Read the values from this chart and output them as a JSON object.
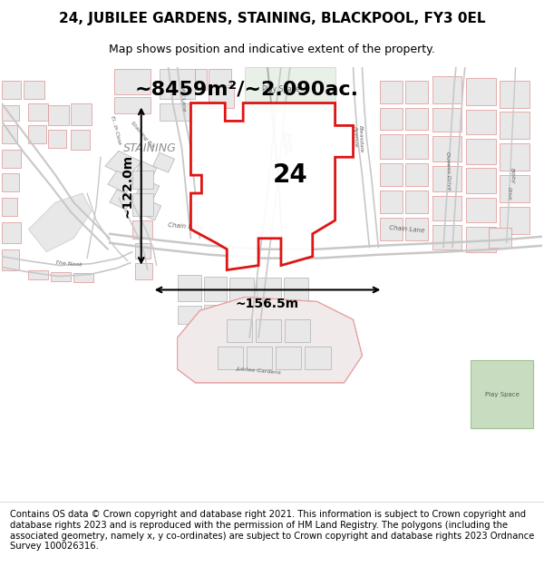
{
  "title": "24, JUBILEE GARDENS, STAINING, BLACKPOOL, FY3 0EL",
  "subtitle": "Map shows position and indicative extent of the property.",
  "area_label": "~8459m²/~2.090ac.",
  "number_label": "24",
  "staining_label": "STAINING",
  "width_label": "~156.5m",
  "height_label": "~122.0m",
  "footer": "Contains OS data © Crown copyright and database right 2021. This information is subject to Crown copyright and database rights 2023 and is reproduced with the permission of HM Land Registry. The polygons (including the associated geometry, namely x, y co-ordinates) are subject to Crown copyright and database rights 2023 Ordnance Survey 100026316.",
  "map_bg": "#f5f0f0",
  "road_gray": "#c8c8c8",
  "road_pink": "#e8a0a0",
  "building_face": "#e8e8e8",
  "building_outline_gray": "#b0b0b0",
  "building_outline_pink": "#e09090",
  "plot_color": "#dd0000",
  "green_fill": "#c8ddc0",
  "green_edge": "#a0c090",
  "title_fontsize": 11,
  "subtitle_fontsize": 9,
  "footer_fontsize": 7.2,
  "area_fontsize": 16,
  "number_fontsize": 20,
  "staining_fontsize": 9,
  "measure_fontsize": 10
}
